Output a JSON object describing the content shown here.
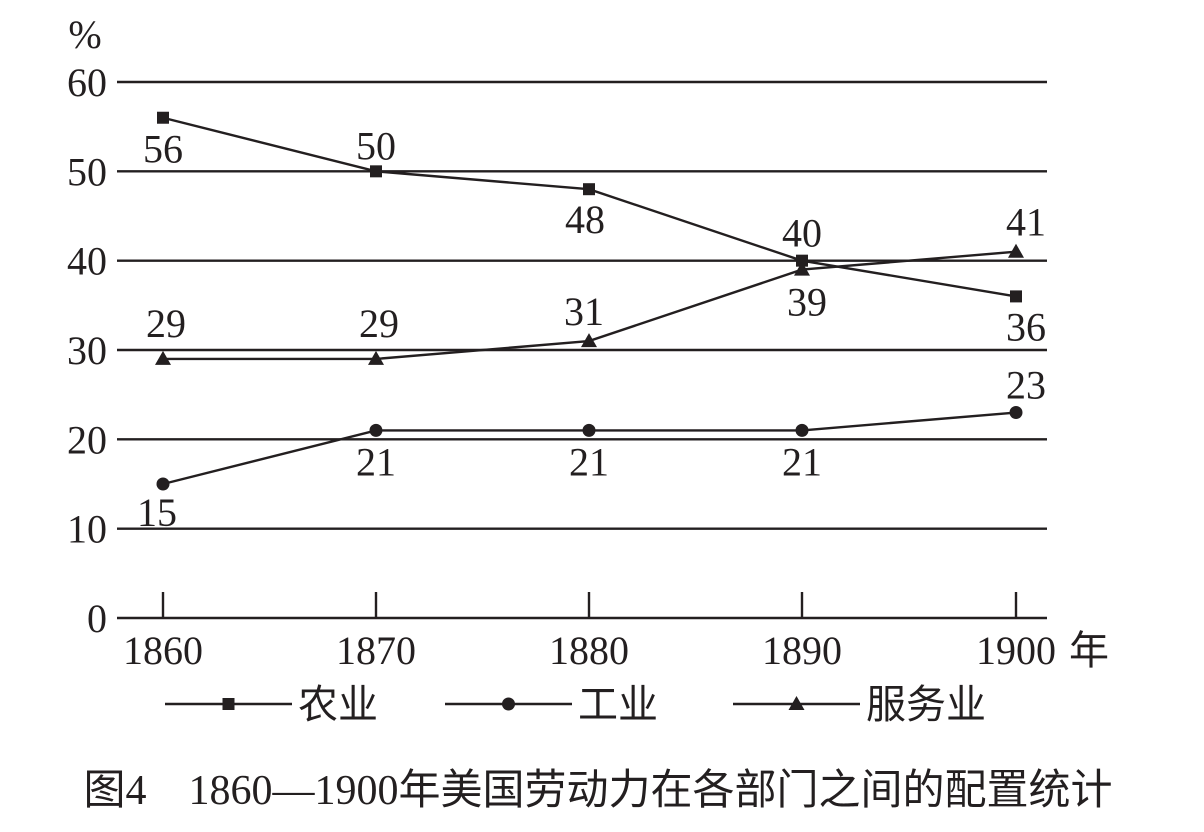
{
  "chart_data": {
    "type": "line",
    "title": "图4　1860—1900年美国劳动力在各部门之间的配置统计",
    "ylabel": "%",
    "xlabel": "年",
    "categories": [
      "1860",
      "1870",
      "1880",
      "1890",
      "1900"
    ],
    "y_ticks": [
      "0",
      "10",
      "20",
      "30",
      "40",
      "50",
      "60"
    ],
    "ylim": [
      0,
      60
    ],
    "grid": true,
    "legend_position": "bottom",
    "series": [
      {
        "name": "农业",
        "marker": "square",
        "values": [
          56,
          50,
          48,
          40,
          36
        ]
      },
      {
        "name": "工业",
        "marker": "circle",
        "values": [
          15,
          21,
          21,
          21,
          23
        ]
      },
      {
        "name": "服务业",
        "marker": "triangle",
        "values": [
          29,
          29,
          31,
          39,
          41
        ]
      }
    ],
    "color": "#231f20"
  }
}
